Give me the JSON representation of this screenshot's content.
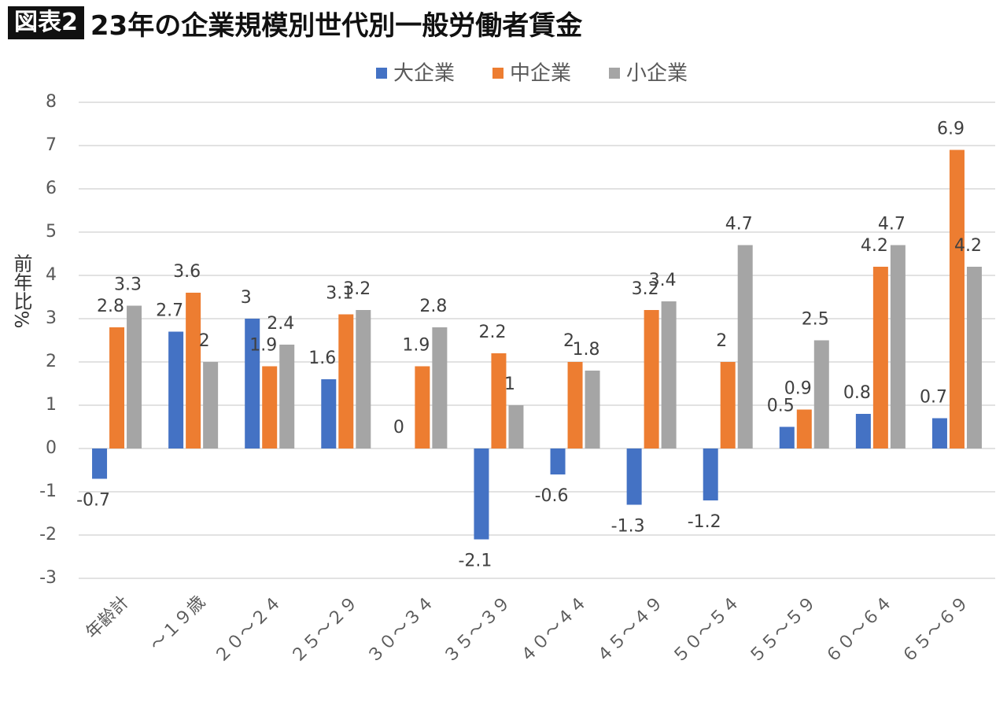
{
  "chart_data": {
    "type": "bar",
    "figure_label": "図表2",
    "title": "23年の企業規模別世代別一般労働者賃金",
    "ylabel": "前年比%",
    "categories": [
      "年齢計",
      "～１９歳",
      "２０～２４",
      "２５～２９",
      "３０～３４",
      "３５～３９",
      "４０～４４",
      "４５～４９",
      "５０～５４",
      "５５～５９",
      "６０～６４",
      "６５～６９"
    ],
    "series": [
      {
        "name": "大企業",
        "color": "#4472c4",
        "values": [
          -0.7,
          2.7,
          3,
          1.6,
          0,
          -2.1,
          -0.6,
          -1.3,
          -1.2,
          0.5,
          0.8,
          0.7
        ]
      },
      {
        "name": "中企業",
        "color": "#ed7d31",
        "values": [
          2.8,
          3.6,
          1.9,
          3.1,
          1.9,
          2.2,
          2,
          3.2,
          2,
          0.9,
          4.2,
          6.9
        ]
      },
      {
        "name": "小企業",
        "color": "#a5a5a5",
        "values": [
          3.3,
          2,
          2.4,
          3.2,
          2.8,
          1,
          1.8,
          3.4,
          4.7,
          2.5,
          4.7,
          4.2
        ]
      }
    ],
    "ylim": [
      -3,
      8
    ],
    "yticks": [
      -3,
      -2,
      -1,
      0,
      1,
      2,
      3,
      4,
      5,
      6,
      7,
      8
    ],
    "grid": true
  }
}
